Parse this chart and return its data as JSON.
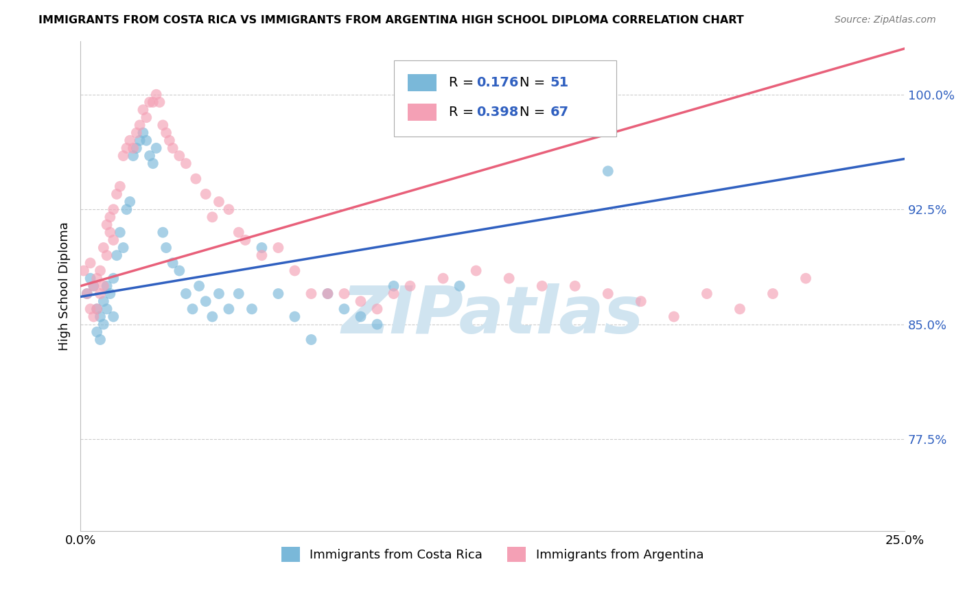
{
  "title": "IMMIGRANTS FROM COSTA RICA VS IMMIGRANTS FROM ARGENTINA HIGH SCHOOL DIPLOMA CORRELATION CHART",
  "source": "Source: ZipAtlas.com",
  "ylabel": "High School Diploma",
  "ytick_labels": [
    "100.0%",
    "92.5%",
    "85.0%",
    "77.5%"
  ],
  "ytick_values": [
    1.0,
    0.925,
    0.85,
    0.775
  ],
  "xlim": [
    0.0,
    0.25
  ],
  "ylim": [
    0.715,
    1.035
  ],
  "legend_label1": "Immigrants from Costa Rica",
  "legend_label2": "Immigrants from Argentina",
  "R1": "0.176",
  "N1": "51",
  "R2": "0.398",
  "N2": "67",
  "color_blue": "#7ab8d9",
  "color_pink": "#f4a0b5",
  "line_color_blue": "#3060c0",
  "line_color_pink": "#e8607a",
  "watermark": "ZIPatlas",
  "watermark_color": "#d0e4f0",
  "costa_rica_x": [
    0.002,
    0.003,
    0.004,
    0.005,
    0.005,
    0.006,
    0.006,
    0.007,
    0.007,
    0.008,
    0.008,
    0.009,
    0.01,
    0.01,
    0.011,
    0.012,
    0.013,
    0.014,
    0.015,
    0.016,
    0.017,
    0.018,
    0.019,
    0.02,
    0.021,
    0.022,
    0.023,
    0.025,
    0.026,
    0.028,
    0.03,
    0.032,
    0.034,
    0.036,
    0.038,
    0.04,
    0.042,
    0.045,
    0.048,
    0.052,
    0.055,
    0.06,
    0.065,
    0.07,
    0.075,
    0.08,
    0.085,
    0.09,
    0.095,
    0.115,
    0.16
  ],
  "costa_rica_y": [
    0.87,
    0.88,
    0.875,
    0.86,
    0.845,
    0.855,
    0.84,
    0.865,
    0.85,
    0.875,
    0.86,
    0.87,
    0.88,
    0.855,
    0.895,
    0.91,
    0.9,
    0.925,
    0.93,
    0.96,
    0.965,
    0.97,
    0.975,
    0.97,
    0.96,
    0.955,
    0.965,
    0.91,
    0.9,
    0.89,
    0.885,
    0.87,
    0.86,
    0.875,
    0.865,
    0.855,
    0.87,
    0.86,
    0.87,
    0.86,
    0.9,
    0.87,
    0.855,
    0.84,
    0.87,
    0.86,
    0.855,
    0.85,
    0.875,
    0.875,
    0.95
  ],
  "argentina_x": [
    0.001,
    0.002,
    0.003,
    0.003,
    0.004,
    0.004,
    0.005,
    0.005,
    0.006,
    0.006,
    0.007,
    0.007,
    0.008,
    0.008,
    0.009,
    0.009,
    0.01,
    0.01,
    0.011,
    0.012,
    0.013,
    0.014,
    0.015,
    0.016,
    0.017,
    0.018,
    0.019,
    0.02,
    0.021,
    0.022,
    0.023,
    0.024,
    0.025,
    0.026,
    0.027,
    0.028,
    0.03,
    0.032,
    0.035,
    0.038,
    0.04,
    0.042,
    0.045,
    0.048,
    0.05,
    0.055,
    0.06,
    0.065,
    0.07,
    0.075,
    0.08,
    0.085,
    0.09,
    0.095,
    0.1,
    0.11,
    0.12,
    0.13,
    0.14,
    0.15,
    0.16,
    0.17,
    0.18,
    0.19,
    0.2,
    0.21,
    0.22
  ],
  "argentina_y": [
    0.885,
    0.87,
    0.89,
    0.86,
    0.875,
    0.855,
    0.88,
    0.86,
    0.885,
    0.87,
    0.9,
    0.875,
    0.915,
    0.895,
    0.92,
    0.91,
    0.925,
    0.905,
    0.935,
    0.94,
    0.96,
    0.965,
    0.97,
    0.965,
    0.975,
    0.98,
    0.99,
    0.985,
    0.995,
    0.995,
    1.0,
    0.995,
    0.98,
    0.975,
    0.97,
    0.965,
    0.96,
    0.955,
    0.945,
    0.935,
    0.92,
    0.93,
    0.925,
    0.91,
    0.905,
    0.895,
    0.9,
    0.885,
    0.87,
    0.87,
    0.87,
    0.865,
    0.86,
    0.87,
    0.875,
    0.88,
    0.885,
    0.88,
    0.875,
    0.875,
    0.87,
    0.865,
    0.855,
    0.87,
    0.86,
    0.87,
    0.88
  ]
}
